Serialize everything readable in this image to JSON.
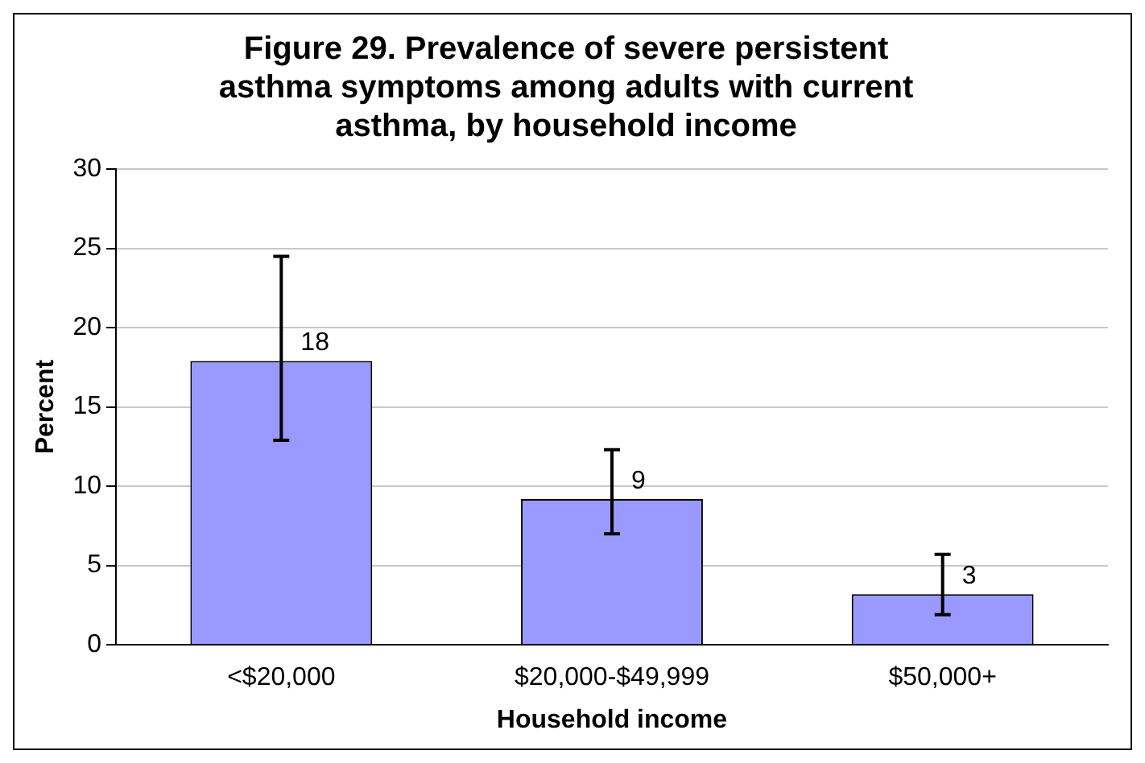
{
  "chart_data": {
    "type": "bar",
    "title": "Figure 29. Prevalence of severe persistent asthma symptoms among adults with current asthma, by household income",
    "xlabel": "Household income",
    "ylabel": "Percent",
    "categories": [
      "<$20,000",
      "$20,000-$49,999",
      "$50,000+"
    ],
    "values": [
      17.9,
      9.2,
      3.2
    ],
    "value_labels": [
      "18",
      "9",
      "3"
    ],
    "errors": [
      [
        12.9,
        24.5
      ],
      [
        7.0,
        12.3
      ],
      [
        1.9,
        5.7
      ]
    ],
    "color": "#9999ff",
    "ylim": [
      0,
      30
    ],
    "yticks": [
      0,
      5,
      10,
      15,
      20,
      25,
      30
    ],
    "grid": "y",
    "legend": false
  }
}
